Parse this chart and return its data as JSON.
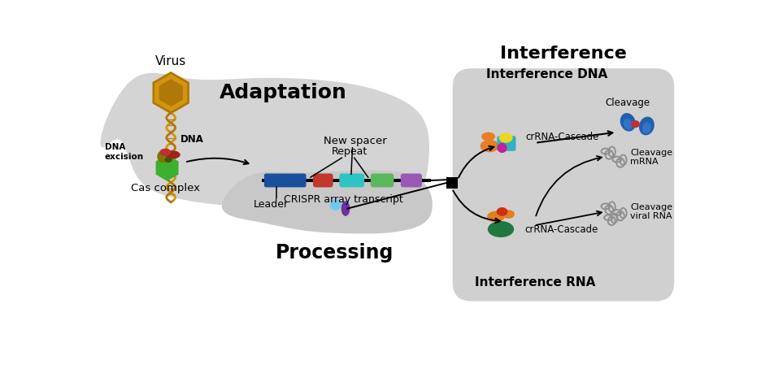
{
  "bg": "#ffffff",
  "gray_left": "#d4d4d4",
  "gray_proc": "#c8c8c8",
  "gray_right": "#d0d0d0",
  "virus_gold": "#d4950e",
  "virus_dark": "#b07808",
  "blue_leader": "#1a4f9e",
  "red_spacer": "#c0392b",
  "cyan_spacer": "#2ec4c4",
  "green_spacer": "#5cb85c",
  "purple_spacer": "#9b59b6",
  "black": "#000000",
  "green_hex": "#3cb030",
  "olive": "#7a7a00",
  "dark_red": "#a02020",
  "orange": "#e67e22",
  "yellow": "#e8d820",
  "magenta_star": "#c020a0",
  "teal_rect": "#30b0c0",
  "light_blue_proc": "#70c8f0",
  "purple_proc": "#7030a0",
  "dark_green_rna": "#207840",
  "orange_rna": "#e08020",
  "red_star": "#d03010",
  "gray_icon": "#909090",
  "blue_dna_icon": "#2060b0",
  "red_dna_icon": "#c03030",
  "labels": {
    "virus": "Virus",
    "dna": "DNA",
    "dna_excision": "DNA\nexcision",
    "cas_complex": "Cas complex",
    "adaptation": "Adaptation",
    "new_spacer": "New spacer",
    "repeat": "Repeat",
    "leader": "Leader",
    "crispr_array": "CRISPR array transcript",
    "processing": "Processing",
    "interference": "Interference",
    "interference_dna": "Interference DNA",
    "interference_rna": "Interference RNA",
    "crRNA_dna": "crRNA-Cascade",
    "crRNA_rna": "crRNA-Cascade",
    "cleavage": "Cleavage",
    "cleavage_mrna": "Cleavage\nmRNA",
    "cleavage_viral": "Cleavage\nviral RNA"
  }
}
